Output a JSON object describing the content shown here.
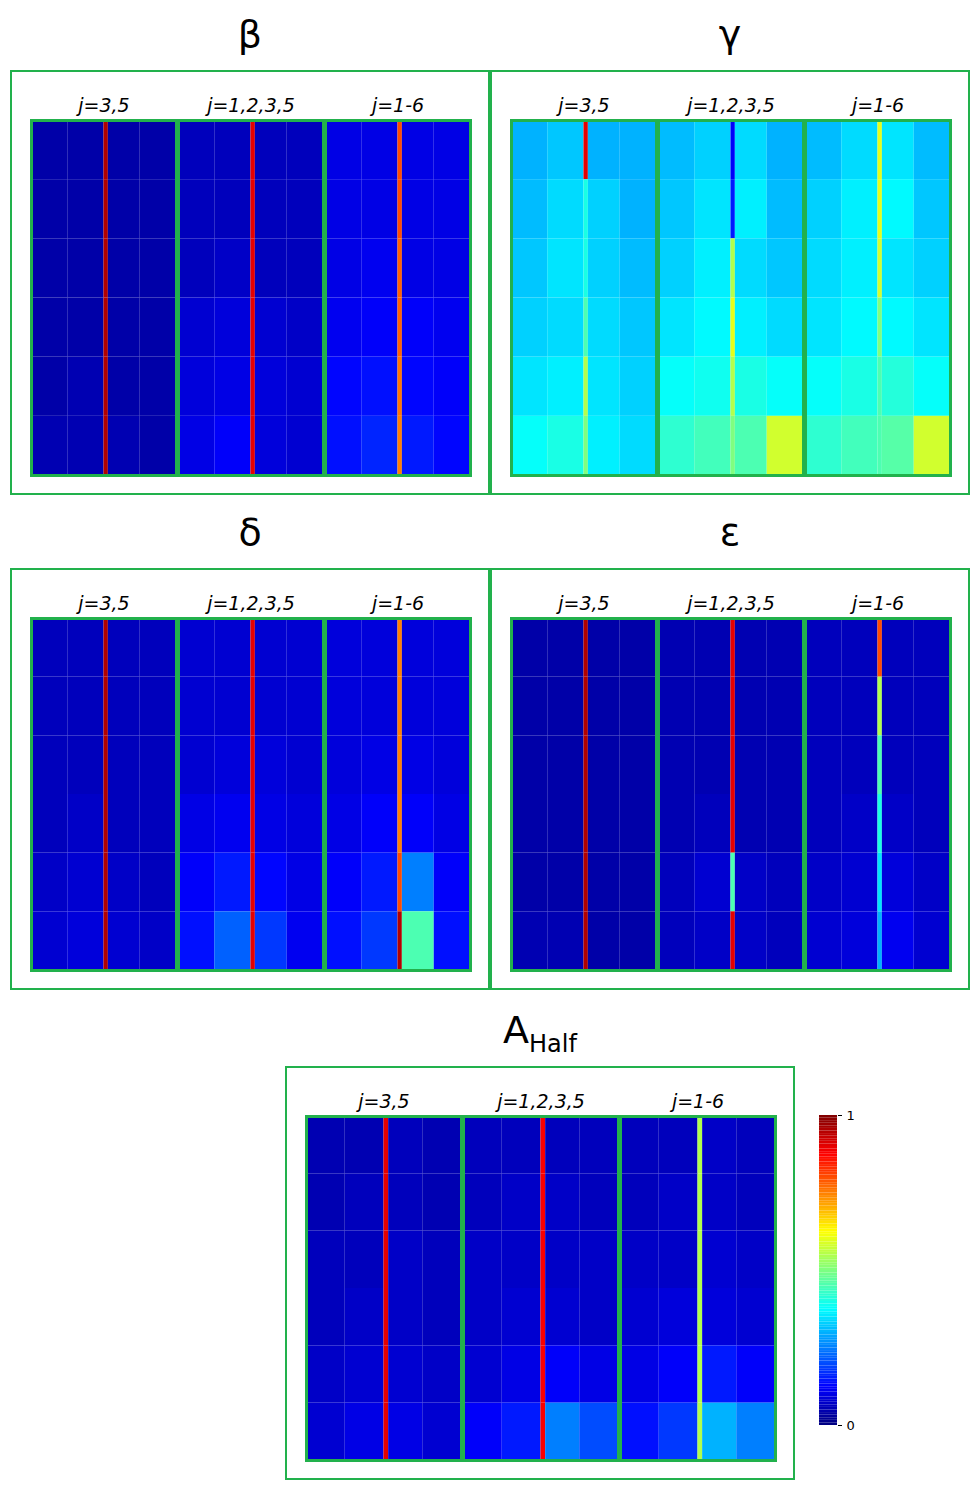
{
  "chart_data": {
    "type": "heatmap",
    "tick_labels": false,
    "cell_x_edges": [
      0,
      0.25,
      0.5,
      0.53,
      0.75,
      1
    ],
    "colorbar": {
      "range": [
        0,
        1
      ],
      "ticks": [
        0,
        1
      ]
    },
    "panels": [
      {
        "title": "β",
        "subpanels": [
          {
            "label": "j=3,5",
            "values": [
              [
                0.04,
                0.04,
                0.95,
                0.04,
                0.04
              ],
              [
                0.04,
                0.04,
                0.95,
                0.04,
                0.04
              ],
              [
                0.04,
                0.04,
                0.95,
                0.04,
                0.04
              ],
              [
                0.04,
                0.04,
                0.95,
                0.04,
                0.04
              ],
              [
                0.04,
                0.05,
                0.95,
                0.04,
                0.04
              ],
              [
                0.05,
                0.05,
                0.95,
                0.05,
                0.04
              ]
            ]
          },
          {
            "label": "j=1,2,3,5",
            "values": [
              [
                0.06,
                0.06,
                0.9,
                0.06,
                0.06
              ],
              [
                0.06,
                0.06,
                0.9,
                0.06,
                0.06
              ],
              [
                0.06,
                0.07,
                0.9,
                0.06,
                0.06
              ],
              [
                0.08,
                0.09,
                0.9,
                0.08,
                0.07
              ],
              [
                0.09,
                0.1,
                0.9,
                0.09,
                0.08
              ],
              [
                0.1,
                0.12,
                0.9,
                0.09,
                0.08
              ]
            ]
          },
          {
            "label": "j=1-6",
            "values": [
              [
                0.1,
                0.1,
                0.8,
                0.1,
                0.1
              ],
              [
                0.1,
                0.1,
                0.8,
                0.1,
                0.1
              ],
              [
                0.1,
                0.11,
                0.78,
                0.1,
                0.1
              ],
              [
                0.11,
                0.12,
                0.78,
                0.12,
                0.11
              ],
              [
                0.13,
                0.14,
                0.76,
                0.13,
                0.12
              ],
              [
                0.14,
                0.16,
                0.75,
                0.15,
                0.13
              ]
            ]
          }
        ]
      },
      {
        "title": "γ",
        "subpanels": [
          {
            "label": "j=3,5",
            "values": [
              [
                0.3,
                0.32,
                0.9,
                0.3,
                0.3
              ],
              [
                0.31,
                0.34,
                0.4,
                0.33,
                0.3
              ],
              [
                0.32,
                0.35,
                0.4,
                0.33,
                0.31
              ],
              [
                0.33,
                0.34,
                0.45,
                0.34,
                0.32
              ],
              [
                0.35,
                0.36,
                0.55,
                0.35,
                0.33
              ],
              [
                0.38,
                0.4,
                0.5,
                0.36,
                0.34
              ]
            ]
          },
          {
            "label": "j=1,2,3,5",
            "values": [
              [
                0.31,
                0.33,
                0.12,
                0.34,
                0.3
              ],
              [
                0.32,
                0.35,
                0.15,
                0.36,
                0.31
              ],
              [
                0.33,
                0.36,
                0.55,
                0.34,
                0.32
              ],
              [
                0.35,
                0.37,
                0.6,
                0.36,
                0.34
              ],
              [
                0.38,
                0.39,
                0.55,
                0.4,
                0.38
              ],
              [
                0.42,
                0.44,
                0.5,
                0.45,
                0.58
              ]
            ]
          },
          {
            "label": "j=1-6",
            "values": [
              [
                0.31,
                0.34,
                0.6,
                0.35,
                0.31
              ],
              [
                0.33,
                0.36,
                0.6,
                0.37,
                0.32
              ],
              [
                0.34,
                0.36,
                0.58,
                0.35,
                0.33
              ],
              [
                0.35,
                0.37,
                0.5,
                0.37,
                0.35
              ],
              [
                0.38,
                0.4,
                0.45,
                0.41,
                0.38
              ],
              [
                0.42,
                0.44,
                0.45,
                0.46,
                0.58
              ]
            ]
          }
        ]
      },
      {
        "title": "δ",
        "subpanels": [
          {
            "label": "j=3,5",
            "values": [
              [
                0.06,
                0.06,
                0.95,
                0.06,
                0.06
              ],
              [
                0.06,
                0.06,
                0.95,
                0.06,
                0.06
              ],
              [
                0.06,
                0.06,
                0.95,
                0.06,
                0.06
              ],
              [
                0.06,
                0.07,
                0.95,
                0.06,
                0.06
              ],
              [
                0.07,
                0.08,
                0.95,
                0.07,
                0.06
              ],
              [
                0.08,
                0.09,
                0.95,
                0.08,
                0.07
              ]
            ]
          },
          {
            "label": "j=1,2,3,5",
            "values": [
              [
                0.08,
                0.08,
                0.9,
                0.08,
                0.08
              ],
              [
                0.08,
                0.08,
                0.9,
                0.08,
                0.08
              ],
              [
                0.08,
                0.09,
                0.9,
                0.09,
                0.08
              ],
              [
                0.1,
                0.11,
                0.9,
                0.1,
                0.09
              ],
              [
                0.12,
                0.15,
                0.9,
                0.13,
                0.1
              ],
              [
                0.14,
                0.22,
                0.9,
                0.18,
                0.11
              ]
            ]
          },
          {
            "label": "j=1-6",
            "values": [
              [
                0.09,
                0.09,
                0.75,
                0.09,
                0.09
              ],
              [
                0.09,
                0.09,
                0.75,
                0.09,
                0.09
              ],
              [
                0.09,
                0.1,
                0.75,
                0.1,
                0.09
              ],
              [
                0.1,
                0.12,
                0.75,
                0.12,
                0.1
              ],
              [
                0.12,
                0.15,
                0.8,
                0.25,
                0.12
              ],
              [
                0.14,
                0.18,
                0.95,
                0.45,
                0.14
              ]
            ]
          }
        ]
      },
      {
        "title": "ε",
        "subpanels": [
          {
            "label": "j=3,5",
            "values": [
              [
                0.04,
                0.04,
                0.95,
                0.04,
                0.04
              ],
              [
                0.04,
                0.04,
                0.95,
                0.04,
                0.04
              ],
              [
                0.04,
                0.04,
                0.95,
                0.04,
                0.04
              ],
              [
                0.04,
                0.04,
                0.95,
                0.04,
                0.04
              ],
              [
                0.04,
                0.04,
                0.95,
                0.04,
                0.04
              ],
              [
                0.05,
                0.05,
                0.95,
                0.04,
                0.04
              ]
            ]
          },
          {
            "label": "j=1,2,3,5",
            "values": [
              [
                0.05,
                0.05,
                0.9,
                0.05,
                0.05
              ],
              [
                0.05,
                0.05,
                0.9,
                0.05,
                0.05
              ],
              [
                0.05,
                0.05,
                0.9,
                0.05,
                0.05
              ],
              [
                0.05,
                0.06,
                0.9,
                0.05,
                0.05
              ],
              [
                0.06,
                0.08,
                0.45,
                0.07,
                0.06
              ],
              [
                0.06,
                0.07,
                0.9,
                0.07,
                0.06
              ]
            ]
          },
          {
            "label": "j=1-6",
            "values": [
              [
                0.06,
                0.06,
                0.8,
                0.06,
                0.06
              ],
              [
                0.06,
                0.06,
                0.55,
                0.06,
                0.06
              ],
              [
                0.06,
                0.06,
                0.45,
                0.06,
                0.06
              ],
              [
                0.06,
                0.07,
                0.4,
                0.07,
                0.06
              ],
              [
                0.07,
                0.08,
                0.35,
                0.09,
                0.07
              ],
              [
                0.08,
                0.09,
                0.3,
                0.11,
                0.08
              ]
            ]
          }
        ]
      },
      {
        "title": "A",
        "subscript": "Half",
        "subpanels": [
          {
            "label": "j=3,5",
            "values": [
              [
                0.05,
                0.05,
                0.9,
                0.06,
                0.05
              ],
              [
                0.05,
                0.06,
                0.9,
                0.06,
                0.05
              ],
              [
                0.06,
                0.06,
                0.9,
                0.07,
                0.06
              ],
              [
                0.06,
                0.07,
                0.9,
                0.07,
                0.06
              ],
              [
                0.07,
                0.08,
                0.9,
                0.08,
                0.07
              ],
              [
                0.08,
                0.1,
                0.9,
                0.1,
                0.08
              ]
            ]
          },
          {
            "label": "j=1,2,3,5",
            "values": [
              [
                0.06,
                0.06,
                0.88,
                0.06,
                0.06
              ],
              [
                0.06,
                0.07,
                0.88,
                0.07,
                0.06
              ],
              [
                0.07,
                0.07,
                0.88,
                0.07,
                0.07
              ],
              [
                0.07,
                0.08,
                0.88,
                0.08,
                0.07
              ],
              [
                0.08,
                0.1,
                0.88,
                0.12,
                0.1
              ],
              [
                0.12,
                0.15,
                0.88,
                0.25,
                0.2
              ]
            ]
          },
          {
            "label": "j=1-6",
            "values": [
              [
                0.06,
                0.06,
                0.55,
                0.07,
                0.06
              ],
              [
                0.06,
                0.07,
                0.55,
                0.07,
                0.06
              ],
              [
                0.07,
                0.07,
                0.55,
                0.08,
                0.07
              ],
              [
                0.08,
                0.09,
                0.55,
                0.09,
                0.08
              ],
              [
                0.1,
                0.12,
                0.55,
                0.15,
                0.12
              ],
              [
                0.14,
                0.18,
                0.55,
                0.3,
                0.25
              ]
            ]
          }
        ]
      }
    ]
  }
}
